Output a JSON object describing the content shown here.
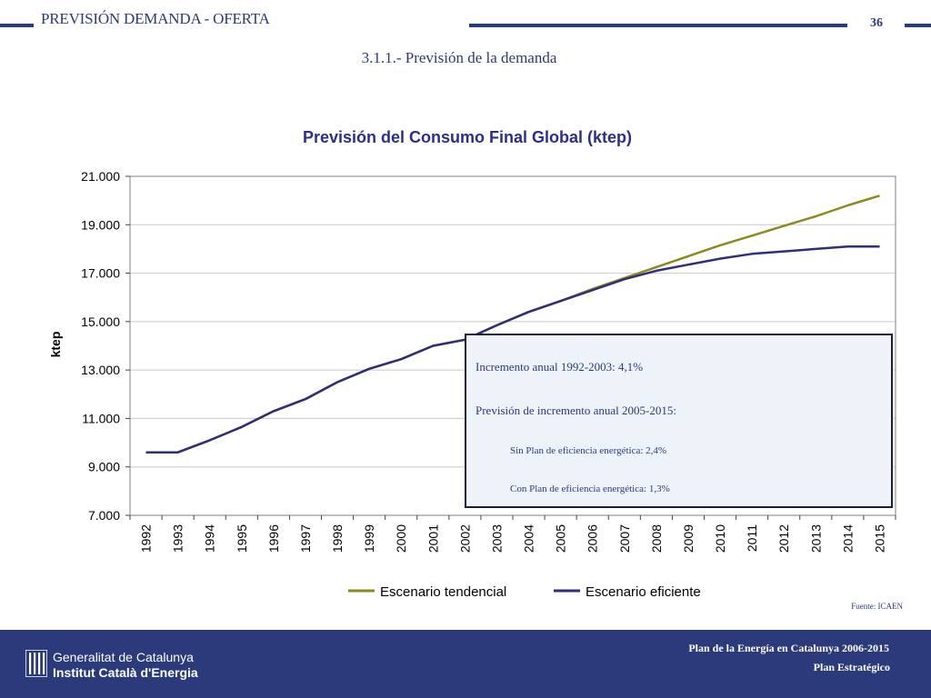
{
  "header": {
    "title": "PREVISIÓN DEMANDA - OFERTA",
    "page_number": "36",
    "line_color": "#2b3a7a"
  },
  "subtitle": "3.1.1.- Previsión de la demanda",
  "annotation": {
    "line1": "Incremento anual 1992-2003: 4,1%",
    "line2": "Previsión de incremento anual 2005-2015:",
    "line3": "Sin Plan de eficiencia energética: 2,4%",
    "line4": "Con Plan de eficiencia energética: 1,3%"
  },
  "source": "Fuente: ICAEN",
  "footer": {
    "org_line1": "Generalitat de Catalunya",
    "org_line2": "Institut Català d'Energia",
    "plan_line1": "Plan de la Energía en Catalunya 2006-2015",
    "plan_line2": "Plan Estratégico",
    "logo_icon": "generalitat-logo-icon",
    "background": "#2b3a7a"
  },
  "chart_data": {
    "type": "line",
    "title": "Previsión del Consumo Final Global (ktep)",
    "xlabel": "",
    "ylabel": "ktep",
    "ylim": [
      7000,
      21000
    ],
    "yticks": [
      7000,
      9000,
      11000,
      13000,
      15000,
      17000,
      19000,
      21000
    ],
    "ytick_labels": [
      "7.000",
      "9.000",
      "11.000",
      "13.000",
      "15.000",
      "17.000",
      "19.000",
      "21.000"
    ],
    "grid": true,
    "legend_position": "bottom",
    "categories": [
      "1992",
      "1993",
      "1994",
      "1995",
      "1996",
      "1997",
      "1998",
      "1999",
      "2000",
      "2001",
      "2002",
      "2003",
      "2004",
      "2005",
      "2006",
      "2007",
      "2008",
      "2009",
      "2010",
      "2011",
      "2012",
      "2013",
      "2014",
      "2015"
    ],
    "series": [
      {
        "name": "Escenario tendencial",
        "color": "#8c8a1e",
        "values": [
          9600,
          9600,
          10100,
          10650,
          11300,
          11800,
          12500,
          13050,
          13450,
          14000,
          14250,
          14850,
          15400,
          15850,
          16350,
          16800,
          17250,
          17700,
          18150,
          18550,
          18950,
          19350,
          19800,
          20200
        ]
      },
      {
        "name": "Escenario eficiente",
        "color": "#2e2e7a",
        "values": [
          9600,
          9600,
          10100,
          10650,
          11300,
          11800,
          12500,
          13050,
          13450,
          14000,
          14250,
          14850,
          15400,
          15850,
          16300,
          16750,
          17100,
          17350,
          17600,
          17800,
          17900,
          18000,
          18100,
          18100
        ]
      }
    ]
  }
}
